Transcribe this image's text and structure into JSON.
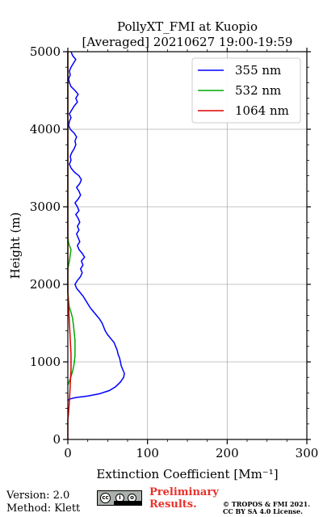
{
  "chart_data": {
    "type": "line",
    "title": "PollyXT_FMI at Kuopio",
    "subtitle": "[Averaged] 20210627 19:00-19:59",
    "xlabel": "Extinction Coefficient [Mm⁻¹]",
    "ylabel": "Height (m)",
    "xlim": [
      0,
      300
    ],
    "ylim": [
      0,
      5000
    ],
    "xticks": [
      0,
      100,
      200,
      300
    ],
    "yticks": [
      0,
      1000,
      2000,
      3000,
      4000,
      5000
    ],
    "xtick_labels": [
      "0",
      "100",
      "200",
      "300"
    ],
    "ytick_labels": [
      "0",
      "1000",
      "2000",
      "3000",
      "4000",
      "5000"
    ],
    "grid": true,
    "legend": "top-right",
    "series": [
      {
        "name": "355 nm",
        "color": "#0000ff",
        "points": [
          [
            0,
            500
          ],
          [
            2,
            520
          ],
          [
            10,
            540
          ],
          [
            25,
            560
          ],
          [
            40,
            590
          ],
          [
            52,
            630
          ],
          [
            60,
            680
          ],
          [
            66,
            740
          ],
          [
            70,
            800
          ],
          [
            71,
            850
          ],
          [
            69,
            900
          ],
          [
            67,
            950
          ],
          [
            66,
            1000
          ],
          [
            65,
            1050
          ],
          [
            63,
            1100
          ],
          [
            62,
            1150
          ],
          [
            60,
            1200
          ],
          [
            58,
            1250
          ],
          [
            54,
            1300
          ],
          [
            50,
            1350
          ],
          [
            47,
            1400
          ],
          [
            45,
            1450
          ],
          [
            43,
            1500
          ],
          [
            40,
            1550
          ],
          [
            36,
            1600
          ],
          [
            32,
            1650
          ],
          [
            28,
            1700
          ],
          [
            25,
            1750
          ],
          [
            22,
            1800
          ],
          [
            19,
            1850
          ],
          [
            15,
            1900
          ],
          [
            11,
            1950
          ],
          [
            9,
            2000
          ],
          [
            12,
            2050
          ],
          [
            16,
            2100
          ],
          [
            18,
            2150
          ],
          [
            16,
            2200
          ],
          [
            19,
            2250
          ],
          [
            17,
            2300
          ],
          [
            21,
            2350
          ],
          [
            18,
            2400
          ],
          [
            14,
            2450
          ],
          [
            12,
            2500
          ],
          [
            15,
            2550
          ],
          [
            13,
            2600
          ],
          [
            11,
            2650
          ],
          [
            14,
            2700
          ],
          [
            12,
            2750
          ],
          [
            15,
            2800
          ],
          [
            13,
            2850
          ],
          [
            10,
            2900
          ],
          [
            14,
            2950
          ],
          [
            12,
            3000
          ],
          [
            9,
            3050
          ],
          [
            13,
            3100
          ],
          [
            16,
            3150
          ],
          [
            14,
            3200
          ],
          [
            11,
            3250
          ],
          [
            15,
            3300
          ],
          [
            17,
            3350
          ],
          [
            14,
            3400
          ],
          [
            8,
            3450
          ],
          [
            4,
            3500
          ],
          [
            2,
            3550
          ],
          [
            4,
            3600
          ],
          [
            3,
            3650
          ],
          [
            5,
            3700
          ],
          [
            8,
            3750
          ],
          [
            10,
            3800
          ],
          [
            9,
            3850
          ],
          [
            11,
            3900
          ],
          [
            8,
            3950
          ],
          [
            3,
            4000
          ],
          [
            1,
            4050
          ],
          [
            2,
            4100
          ],
          [
            4,
            4150
          ],
          [
            2,
            4200
          ],
          [
            5,
            4250
          ],
          [
            8,
            4300
          ],
          [
            12,
            4350
          ],
          [
            10,
            4400
          ],
          [
            13,
            4450
          ],
          [
            9,
            4500
          ],
          [
            4,
            4550
          ],
          [
            2,
            4600
          ],
          [
            1,
            4650
          ],
          [
            3,
            4700
          ],
          [
            2,
            4750
          ],
          [
            4,
            4800
          ],
          [
            7,
            4850
          ],
          [
            10,
            4900
          ],
          [
            6,
            4950
          ],
          [
            4,
            5000
          ]
        ]
      },
      {
        "name": "532 nm",
        "color": "#00aa00",
        "points": [
          [
            0,
            700
          ],
          [
            3,
            780
          ],
          [
            6,
            880
          ],
          [
            8,
            980
          ],
          [
            9,
            1080
          ],
          [
            9,
            1180
          ],
          [
            9,
            1280
          ],
          [
            8,
            1380
          ],
          [
            7,
            1480
          ],
          [
            6,
            1560
          ],
          [
            4,
            1640
          ],
          [
            2,
            1700
          ],
          [
            1,
            1780
          ],
          [
            0,
            1900
          ],
          [
            0,
            2050
          ],
          [
            0,
            2200
          ],
          [
            2,
            2300
          ],
          [
            3,
            2380
          ],
          [
            4,
            2450
          ],
          [
            2,
            2500
          ],
          [
            1,
            2540
          ],
          [
            0,
            2600
          ],
          [
            0,
            3000
          ],
          [
            0,
            4000
          ],
          [
            0,
            5000
          ]
        ]
      },
      {
        "name": "1064 nm",
        "color": "#dd0000",
        "points": [
          [
            0,
            0
          ],
          [
            0,
            250
          ],
          [
            1,
            350
          ],
          [
            2,
            500
          ],
          [
            3,
            700
          ],
          [
            4,
            900
          ],
          [
            4,
            1100
          ],
          [
            3,
            1300
          ],
          [
            2,
            1500
          ],
          [
            1,
            1700
          ],
          [
            0,
            1900
          ],
          [
            0,
            2200
          ],
          [
            0,
            2600
          ],
          [
            0,
            3000
          ],
          [
            0,
            4000
          ],
          [
            0,
            5000
          ]
        ]
      }
    ]
  },
  "footer": {
    "version": "Version: 2.0",
    "method": "Method: Klett",
    "preliminary_line1": "Preliminary",
    "preliminary_line2": "Results.",
    "copyright_line1": "© TROPOS & FMI 2021.",
    "copyright_line2": "CC BY SA 4.0 License."
  },
  "badge": {
    "icon": "cc-by-sa-icon"
  }
}
